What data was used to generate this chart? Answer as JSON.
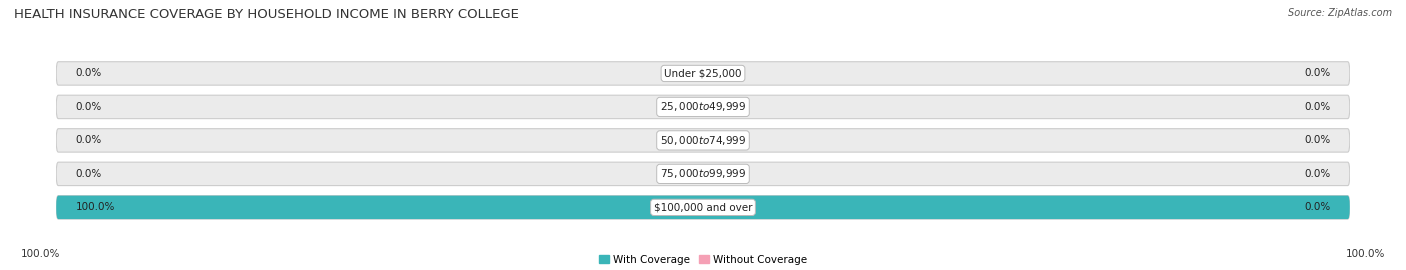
{
  "title": "HEALTH INSURANCE COVERAGE BY HOUSEHOLD INCOME IN BERRY COLLEGE",
  "source": "Source: ZipAtlas.com",
  "categories": [
    "Under $25,000",
    "$25,000 to $49,999",
    "$50,000 to $74,999",
    "$75,000 to $99,999",
    "$100,000 and over"
  ],
  "with_coverage": [
    0.0,
    0.0,
    0.0,
    0.0,
    100.0
  ],
  "without_coverage": [
    0.0,
    0.0,
    0.0,
    0.0,
    0.0
  ],
  "teal_color": "#3ab5b8",
  "pink_color": "#f5a0b5",
  "bar_bg_color": "#ebebeb",
  "bar_border_color": "#cccccc",
  "title_fontsize": 9.5,
  "label_fontsize": 7.5,
  "tick_fontsize": 7.5,
  "source_fontsize": 7,
  "legend_fontsize": 7.5,
  "bottom_left_label": "100.0%",
  "bottom_right_label": "100.0%",
  "legend_with": "With Coverage",
  "legend_without": "Without Coverage"
}
